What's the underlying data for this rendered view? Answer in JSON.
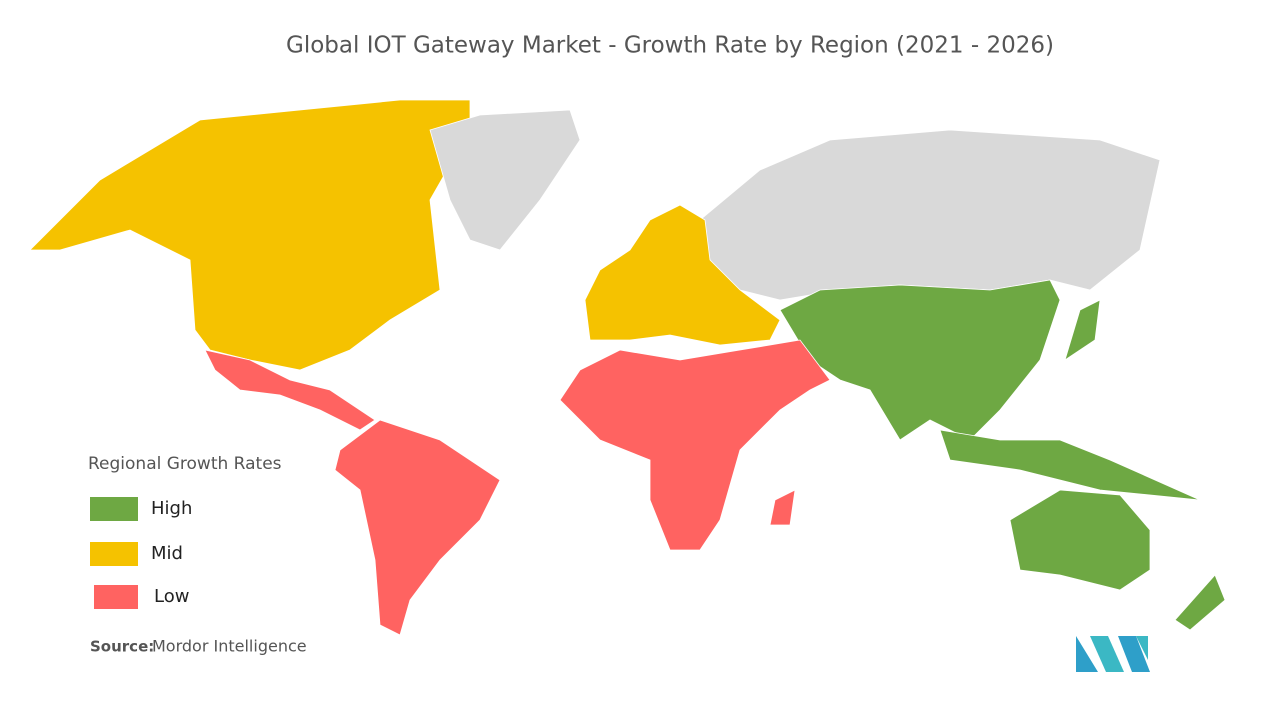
{
  "title": "Global IOT Gateway Market - Growth Rate by Region (2021 - 2026)",
  "legend": {
    "title": "Regional Growth Rates",
    "items": [
      {
        "label": "High",
        "color": "#6ea843"
      },
      {
        "label": "Mid",
        "color": "#f5c200"
      },
      {
        "label": "Low",
        "color": "#ff6361"
      }
    ]
  },
  "source": {
    "label": "Source:",
    "text": "Mordor Intelligence"
  }
}
